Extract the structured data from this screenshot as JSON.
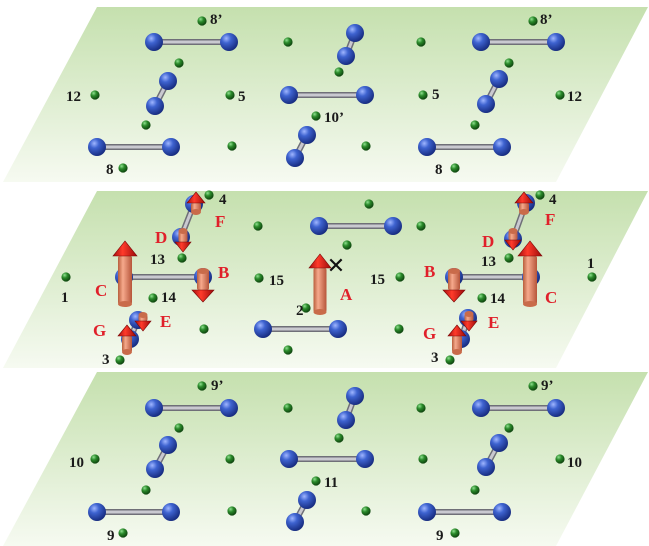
{
  "layers": [
    {
      "name": "top",
      "labels": [
        "8’",
        "8’",
        "12",
        "5",
        "5",
        "12",
        "10’",
        "8",
        "8"
      ]
    },
    {
      "name": "middle",
      "labels": [
        "4",
        "4",
        "13",
        "13",
        "1",
        "1",
        "15",
        "15",
        "14",
        "14",
        "2",
        "3",
        "3"
      ],
      "site_labels": [
        "A",
        "B",
        "B",
        "C",
        "C",
        "D",
        "D",
        "E",
        "E",
        "F",
        "F",
        "G",
        "G"
      ],
      "cross_mark": "✕"
    },
    {
      "name": "bottom",
      "labels": [
        "9’",
        "9’",
        "10",
        "10",
        "11",
        "9",
        "9"
      ]
    }
  ],
  "colors": {
    "plane_light": "#f4f9ee",
    "plane_dark": "#c9e2b4",
    "blue_atom": "#2a4fb8",
    "green_atom": "#1c6a1c",
    "bond": "#b4b4bc",
    "arrow": "#e21b1b",
    "label_black": "#1a1a1a",
    "label_red": "#e0202a"
  }
}
